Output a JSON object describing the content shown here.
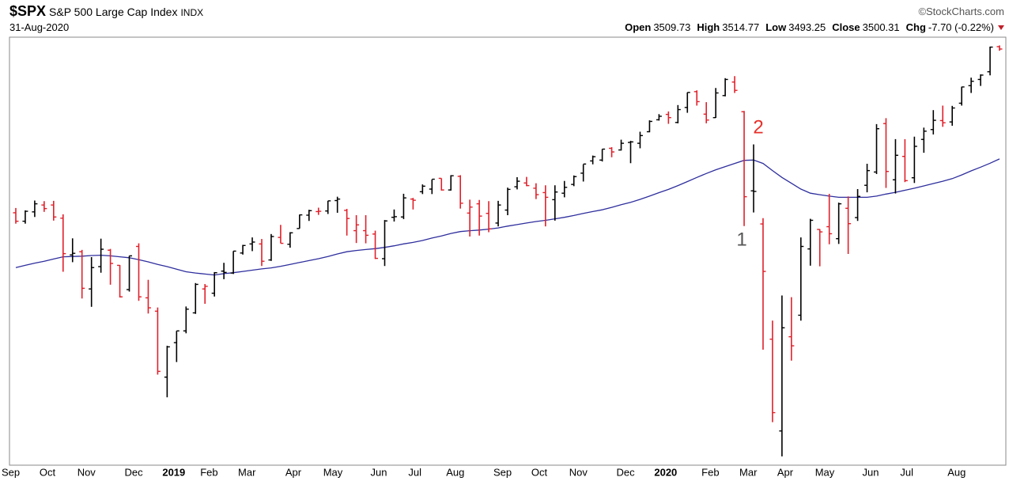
{
  "chart_data": {
    "type": "ohlc",
    "title": "$SPX",
    "subtitle": "S&P 500 Large Cap Index",
    "exchange": "INDX",
    "date": "31-Aug-2020",
    "source": "©StockCharts.com",
    "quote": [
      {
        "label": "Open",
        "value": "3509.73"
      },
      {
        "label": "High",
        "value": "3514.77"
      },
      {
        "label": "Low",
        "value": "3493.25"
      },
      {
        "label": "Close",
        "value": "3500.31"
      },
      {
        "label": "Chg",
        "value": "-7.70 (-0.22%)"
      }
    ],
    "log_scale": true,
    "ylim": [
      2170,
      3545
    ],
    "up_color": "#000000",
    "down_color": "#e0202a",
    "ma_color": "#2e2e9e",
    "annotations": [
      {
        "text": "1",
        "color": "#555555"
      },
      {
        "text": "2",
        "color": "#e8302a"
      }
    ],
    "categories": [
      "Sep",
      null,
      null,
      null,
      "Oct",
      null,
      null,
      null,
      "Nov",
      null,
      null,
      null,
      null,
      "Dec",
      null,
      null,
      null,
      "2019",
      null,
      null,
      null,
      "Feb",
      null,
      null,
      null,
      "Mar",
      null,
      null,
      null,
      null,
      "Apr",
      null,
      null,
      null,
      "May",
      null,
      null,
      null,
      null,
      "Jun",
      null,
      null,
      null,
      "Jul",
      null,
      null,
      null,
      "Aug",
      null,
      null,
      null,
      null,
      "Sep",
      null,
      null,
      null,
      "Oct",
      null,
      null,
      null,
      "Nov",
      null,
      null,
      null,
      null,
      "Dec",
      null,
      null,
      null,
      "2020",
      null,
      null,
      null,
      null,
      "Feb",
      null,
      null,
      null,
      "Mar",
      null,
      null,
      null,
      "Apr",
      null,
      null,
      null,
      "May",
      null,
      null,
      null,
      null,
      "Jun",
      null,
      null,
      null,
      "Jul",
      null,
      null,
      null,
      null,
      "Aug",
      null,
      null,
      null,
      null
    ],
    "open": [
      2900,
      2872,
      2903,
      2926,
      2926,
      2882,
      2763,
      2773,
      2657,
      2726,
      2778,
      2730,
      2655,
      2790,
      2630,
      2590,
      2401,
      2498,
      2532,
      2585,
      2657,
      2644,
      2712,
      2706,
      2769,
      2798,
      2798,
      2747,
      2819,
      2797,
      2848,
      2892,
      2904,
      2906,
      2941,
      2908,
      2841,
      2841,
      2830,
      2751,
      2885,
      2886,
      2946,
      2971,
      2980,
      3017,
      2977,
      3024,
      2899,
      2930,
      2898,
      2866,
      2909,
      2988,
      3001,
      2983,
      2968,
      2944,
      2966,
      2996,
      3035,
      3078,
      3081,
      3123,
      3117,
      3144,
      3141,
      3183,
      3227,
      3247,
      3217,
      3273,
      3333,
      3248,
      3235,
      3318,
      3370,
      3257,
      2974,
      2863,
      2508,
      2257,
      2515,
      2578,
      2782,
      2845,
      2854,
      2815,
      2915,
      2884,
      2993,
      3039,
      3213,
      3012,
      3094,
      3019,
      3155,
      3191,
      3224,
      3219,
      3289,
      3356,
      3380,
      3410,
      3509.73
    ],
    "high": [
      2916,
      2908,
      2941,
      2939,
      2940,
      2895,
      2816,
      2779,
      2756,
      2815,
      2782,
      2731,
      2760,
      2800,
      2685,
      2601,
      2489,
      2532,
      2604,
      2675,
      2672,
      2709,
      2738,
      2775,
      2795,
      2819,
      2814,
      2830,
      2860,
      2836,
      2894,
      2910,
      2917,
      2940,
      2954,
      2913,
      2892,
      2892,
      2841,
      2876,
      2911,
      2964,
      2950,
      2996,
      3013,
      3017,
      3028,
      3028,
      2944,
      2943,
      2939,
      2940,
      2985,
      3021,
      3022,
      3000,
      2993,
      2993,
      3008,
      3027,
      3066,
      3097,
      3120,
      3127,
      3154,
      3150,
      3183,
      3225,
      3248,
      3258,
      3282,
      3330,
      3338,
      3293,
      3347,
      3385,
      3393,
      3260,
      3137,
      2882,
      2562,
      2637,
      2632,
      2819,
      2880,
      2846,
      2964,
      2934,
      2955,
      2980,
      3068,
      3211,
      3233,
      3156,
      3156,
      3165,
      3198,
      3263,
      3280,
      3279,
      3352,
      3387,
      3400,
      3510,
      3514.77
    ],
    "low": [
      2864,
      2864,
      2886,
      2903,
      2874,
      2710,
      2740,
      2628,
      2603,
      2707,
      2670,
      2631,
      2649,
      2621,
      2583,
      2408,
      2346,
      2443,
      2525,
      2582,
      2612,
      2634,
      2687,
      2703,
      2764,
      2775,
      2728,
      2744,
      2800,
      2786,
      2848,
      2873,
      2893,
      2896,
      2900,
      2825,
      2801,
      2800,
      2750,
      2728,
      2871,
      2879,
      2911,
      2963,
      2963,
      2975,
      2975,
      2914,
      2822,
      2825,
      2836,
      2855,
      2892,
      2979,
      2990,
      2946,
      2855,
      2874,
      2952,
      2990,
      3006,
      3066,
      3076,
      3091,
      3115,
      3070,
      3123,
      3181,
      3224,
      3212,
      3214,
      3253,
      3280,
      3214,
      3234,
      3315,
      3328,
      2856,
      2901,
      2478,
      2280,
      2192,
      2447,
      2562,
      2729,
      2727,
      2797,
      2798,
      2766,
      2873,
      2969,
      3032,
      2984,
      2965,
      3004,
      3001,
      3107,
      3173,
      3201,
      3205,
      3280,
      3328,
      3355,
      3396,
      3493.25
    ],
    "close": [
      2872,
      2905,
      2930,
      2914,
      2886,
      2767,
      2768,
      2659,
      2723,
      2781,
      2736,
      2633,
      2760,
      2633,
      2600,
      2417,
      2486,
      2532,
      2596,
      2671,
      2665,
      2707,
      2708,
      2775,
      2793,
      2804,
      2743,
      2822,
      2800,
      2834,
      2893,
      2907,
      2905,
      2940,
      2946,
      2881,
      2860,
      2826,
      2752,
      2873,
      2887,
      2950,
      2942,
      2990,
      3014,
      2977,
      3026,
      2932,
      2919,
      2889,
      2847,
      2926,
      2979,
      3007,
      2992,
      2961,
      2952,
      2970,
      2986,
      3023,
      3067,
      3093,
      3120,
      3110,
      3141,
      3146,
      3169,
      3221,
      3240,
      3235,
      3265,
      3330,
      3295,
      3226,
      3328,
      3380,
      3338,
      2954,
      2972,
      2711,
      2305,
      2541,
      2489,
      2790,
      2875,
      2837,
      2831,
      2930,
      2864,
      2955,
      3044,
      3194,
      3041,
      3098,
      3009,
      3130,
      3185,
      3225,
      3216,
      3271,
      3351,
      3373,
      3397,
      3508,
      3500.31
    ],
    "ma_values": [
      2723,
      2730,
      2737,
      2743,
      2750,
      2757,
      2758,
      2759,
      2761,
      2762,
      2760,
      2757,
      2754,
      2748,
      2741,
      2733,
      2726,
      2718,
      2710,
      2706,
      2703,
      2700,
      2704,
      2707,
      2711,
      2715,
      2719,
      2722,
      2727,
      2733,
      2739,
      2745,
      2751,
      2758,
      2766,
      2773,
      2777,
      2780,
      2783,
      2787,
      2792,
      2798,
      2803,
      2809,
      2817,
      2824,
      2832,
      2838,
      2841,
      2843,
      2846,
      2850,
      2856,
      2861,
      2866,
      2871,
      2875,
      2880,
      2885,
      2891,
      2898,
      2904,
      2910,
      2918,
      2927,
      2935,
      2945,
      2956,
      2968,
      2979,
      2992,
      3006,
      3020,
      3034,
      3047,
      3058,
      3069,
      3080,
      3081,
      3069,
      3044,
      3020,
      3000,
      2980,
      2966,
      2961,
      2956,
      2952,
      2952,
      2952,
      2952,
      2956,
      2963,
      2969,
      2976,
      2983,
      2991,
      2999,
      3007,
      3016,
      3029,
      3043,
      3056,
      3070,
      3085
    ]
  }
}
